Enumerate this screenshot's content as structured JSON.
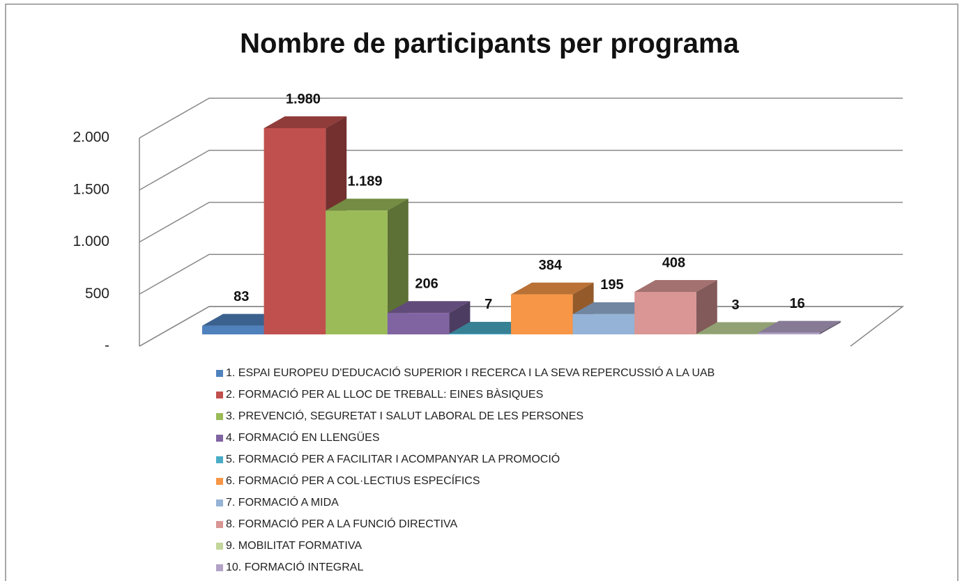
{
  "chart_data": {
    "type": "bar3d",
    "title": "Nombre de participants per programa",
    "categories": [
      "1. ESPAI EUROPEU D'EDUCACIÓ SUPERIOR I RECERCA I LA SEVA REPERCUSSIÓ A LA UAB",
      "2. FORMACIÓ PER AL LLOC DE TREBALL: EINES BÀSIQUES",
      "3. PREVENCIÓ, SEGURETAT I SALUT LABORAL DE LES PERSONES",
      "4. FORMACIÓ EN LLENGÜES",
      "5. FORMACIÓ PER A FACILITAR I ACOMPANYAR LA PROMOCIÓ",
      "6. FORMACIÓ PER A COL·LECTIUS ESPECÍFICS",
      "7. FORMACIÓ A MIDA",
      "8. FORMACIÓ PER A LA FUNCIÓ DIRECTIVA",
      "9. MOBILITAT FORMATIVA",
      "10. FORMACIÓ INTEGRAL"
    ],
    "values": [
      83,
      1980,
      1189,
      206,
      7,
      384,
      195,
      408,
      3,
      16
    ],
    "value_labels": [
      "83",
      "1.980",
      "1.189",
      "206",
      "7",
      "384",
      "195",
      "408",
      "3",
      "16"
    ],
    "colors": [
      "#4f81bd",
      "#c0504d",
      "#9bbb59",
      "#8064a2",
      "#4bacc6",
      "#f79646",
      "#95b3d7",
      "#d99694",
      "#c3d69b",
      "#b2a2c7"
    ],
    "ylim": [
      0,
      2000
    ],
    "yticks": [
      {
        "value": 0,
        "label": "-"
      },
      500,
      {
        "value": 1000,
        "label": "1.000"
      },
      {
        "value": 1500,
        "label": "1.500"
      },
      {
        "value": 2000,
        "label": "2.000"
      }
    ],
    "grid": true,
    "legend": "bottom"
  }
}
